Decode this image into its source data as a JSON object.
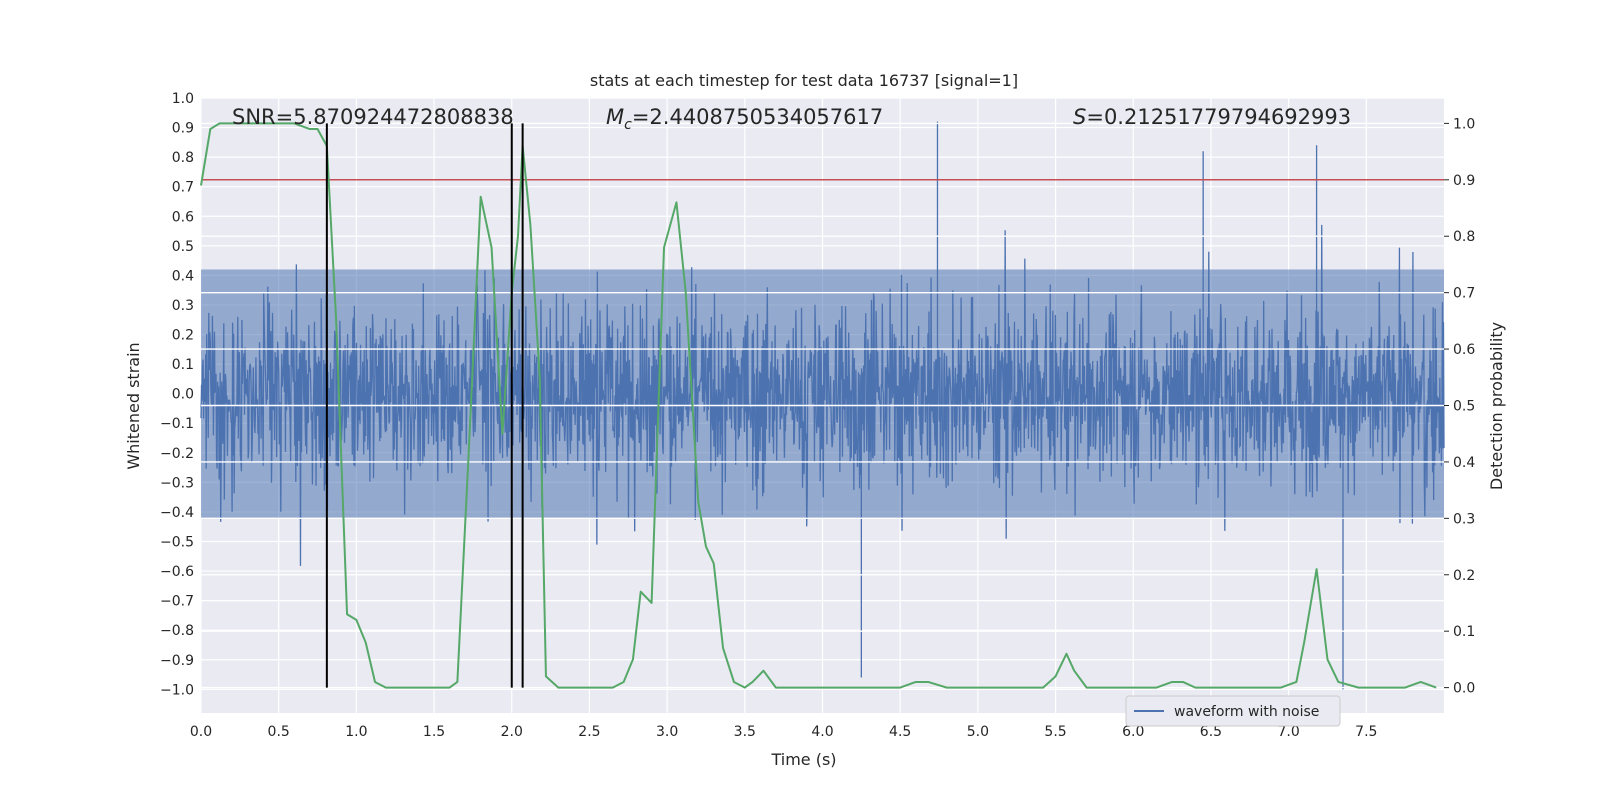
{
  "chart_data": {
    "type": "line",
    "title": "stats at each timestep for test data 16737 [signal=1]",
    "xlabel": "Time (s)",
    "ylabel": "Whitened strain",
    "y2label": "Detection probability",
    "xlim": [
      0.0,
      8.0
    ],
    "ylim": [
      -1.08,
      1.0
    ],
    "y2lim": [
      -0.045,
      1.045
    ],
    "xticks": [
      0.0,
      0.5,
      1.0,
      1.5,
      2.0,
      2.5,
      3.0,
      3.5,
      4.0,
      4.5,
      5.0,
      5.5,
      6.0,
      6.5,
      7.0,
      7.5
    ],
    "xtick_labels": [
      "0.0",
      "0.5",
      "1.0",
      "1.5",
      "2.0",
      "2.5",
      "3.0",
      "3.5",
      "4.0",
      "4.5",
      "5.0",
      "5.5",
      "6.0",
      "6.5",
      "7.0",
      "7.5"
    ],
    "yticks": [
      1.0,
      0.9,
      0.8,
      0.7,
      0.6,
      0.5,
      0.4,
      0.3,
      0.2,
      0.1,
      0.0,
      -0.1,
      -0.2,
      -0.3,
      -0.4,
      -0.5,
      -0.6,
      -0.7,
      -0.8,
      -0.9,
      -1.0
    ],
    "ytick_labels": [
      "1.0",
      "0.9",
      "0.8",
      "0.7",
      "0.6",
      "0.5",
      "0.4",
      "0.3",
      "0.2",
      "0.1",
      "0.0",
      "−0.1",
      "−0.2",
      "−0.3",
      "−0.4",
      "−0.5",
      "−0.6",
      "−0.7",
      "−0.8",
      "−0.9",
      "−1.0"
    ],
    "y2ticks": [
      1.0,
      0.9,
      0.8,
      0.7,
      0.6,
      0.5,
      0.4,
      0.3,
      0.2,
      0.1,
      0.0
    ],
    "y2tick_labels": [
      "1.0",
      "0.9",
      "0.8",
      "0.7",
      "0.6",
      "0.5",
      "0.4",
      "0.3",
      "0.2",
      "0.1",
      "0.0"
    ],
    "grid": true,
    "annotations": {
      "snr": "SNR=5.870924472808838",
      "mc_symbol": "M",
      "mc_subscript": "c",
      "mc_value": "=2.4408750534057617",
      "s_symbol": "S",
      "s_value": "=0.21251779794692993"
    },
    "legend": {
      "label": "waveform with noise",
      "placement": "lower-right"
    },
    "threshold": {
      "axis": "right",
      "value": 0.9,
      "color": "#c44e52"
    },
    "vertical_markers": {
      "x": [
        0.81,
        2.0,
        2.07
      ],
      "color": "#000000"
    },
    "series": [
      {
        "name": "waveform with noise",
        "axis": "left",
        "kind": "noisy-waveform",
        "color": "#4c72b0",
        "typical_amplitude": [
          -0.45,
          0.45
        ],
        "extreme_range": [
          -1.0,
          0.92
        ],
        "notable_peaks": [
          {
            "x": 4.74,
            "y": 0.92
          },
          {
            "x": 7.18,
            "y": 0.84
          },
          {
            "x": 2.07,
            "y": 0.83
          },
          {
            "x": 6.45,
            "y": 0.82
          },
          {
            "x": 7.35,
            "y": -1.0
          },
          {
            "x": 4.25,
            "y": -0.96
          }
        ]
      },
      {
        "name": "",
        "axis": "right",
        "kind": "line",
        "color": "#55a868",
        "x": [
          0.0,
          0.06,
          0.12,
          0.25,
          0.5,
          0.6,
          0.7,
          0.75,
          0.81,
          0.87,
          0.94,
          1.0,
          1.06,
          1.12,
          1.19,
          1.25,
          1.4,
          1.55,
          1.6,
          1.65,
          1.72,
          1.8,
          1.87,
          1.94,
          2.0,
          2.04,
          2.07,
          2.12,
          2.18,
          2.22,
          2.3,
          2.5,
          2.65,
          2.72,
          2.78,
          2.83,
          2.9,
          2.98,
          3.06,
          3.12,
          3.2,
          3.25,
          3.3,
          3.36,
          3.43,
          3.5,
          3.55,
          3.62,
          3.7,
          3.75,
          3.85,
          3.95,
          4.1,
          4.3,
          4.4,
          4.5,
          4.6,
          4.68,
          4.8,
          4.9,
          5.05,
          5.25,
          5.35,
          5.42,
          5.5,
          5.57,
          5.62,
          5.7,
          5.8,
          5.9,
          6.05,
          6.15,
          6.25,
          6.32,
          6.4,
          6.5,
          6.65,
          6.85,
          6.95,
          7.05,
          7.1,
          7.18,
          7.25,
          7.32,
          7.45,
          7.6,
          7.75,
          7.85,
          7.95
        ],
        "y": [
          0.89,
          0.99,
          1.0,
          1.0,
          1.0,
          1.0,
          0.99,
          0.99,
          0.96,
          0.65,
          0.13,
          0.12,
          0.08,
          0.01,
          0.0,
          0.0,
          0.0,
          0.0,
          0.0,
          0.01,
          0.4,
          0.87,
          0.78,
          0.45,
          0.7,
          0.8,
          0.96,
          0.82,
          0.55,
          0.02,
          0.0,
          0.0,
          0.0,
          0.01,
          0.05,
          0.17,
          0.15,
          0.78,
          0.86,
          0.7,
          0.33,
          0.25,
          0.22,
          0.07,
          0.01,
          0.0,
          0.01,
          0.03,
          0.0,
          0.0,
          0.0,
          0.0,
          0.0,
          0.0,
          0.0,
          0.0,
          0.01,
          0.01,
          0.0,
          0.0,
          0.0,
          0.0,
          0.0,
          0.0,
          0.02,
          0.06,
          0.03,
          0.0,
          0.0,
          0.0,
          0.0,
          0.0,
          0.01,
          0.01,
          0.0,
          0.0,
          0.0,
          0.0,
          0.0,
          0.01,
          0.08,
          0.21,
          0.05,
          0.01,
          0.0,
          0.0,
          0.0,
          0.01,
          0.0
        ]
      }
    ]
  }
}
